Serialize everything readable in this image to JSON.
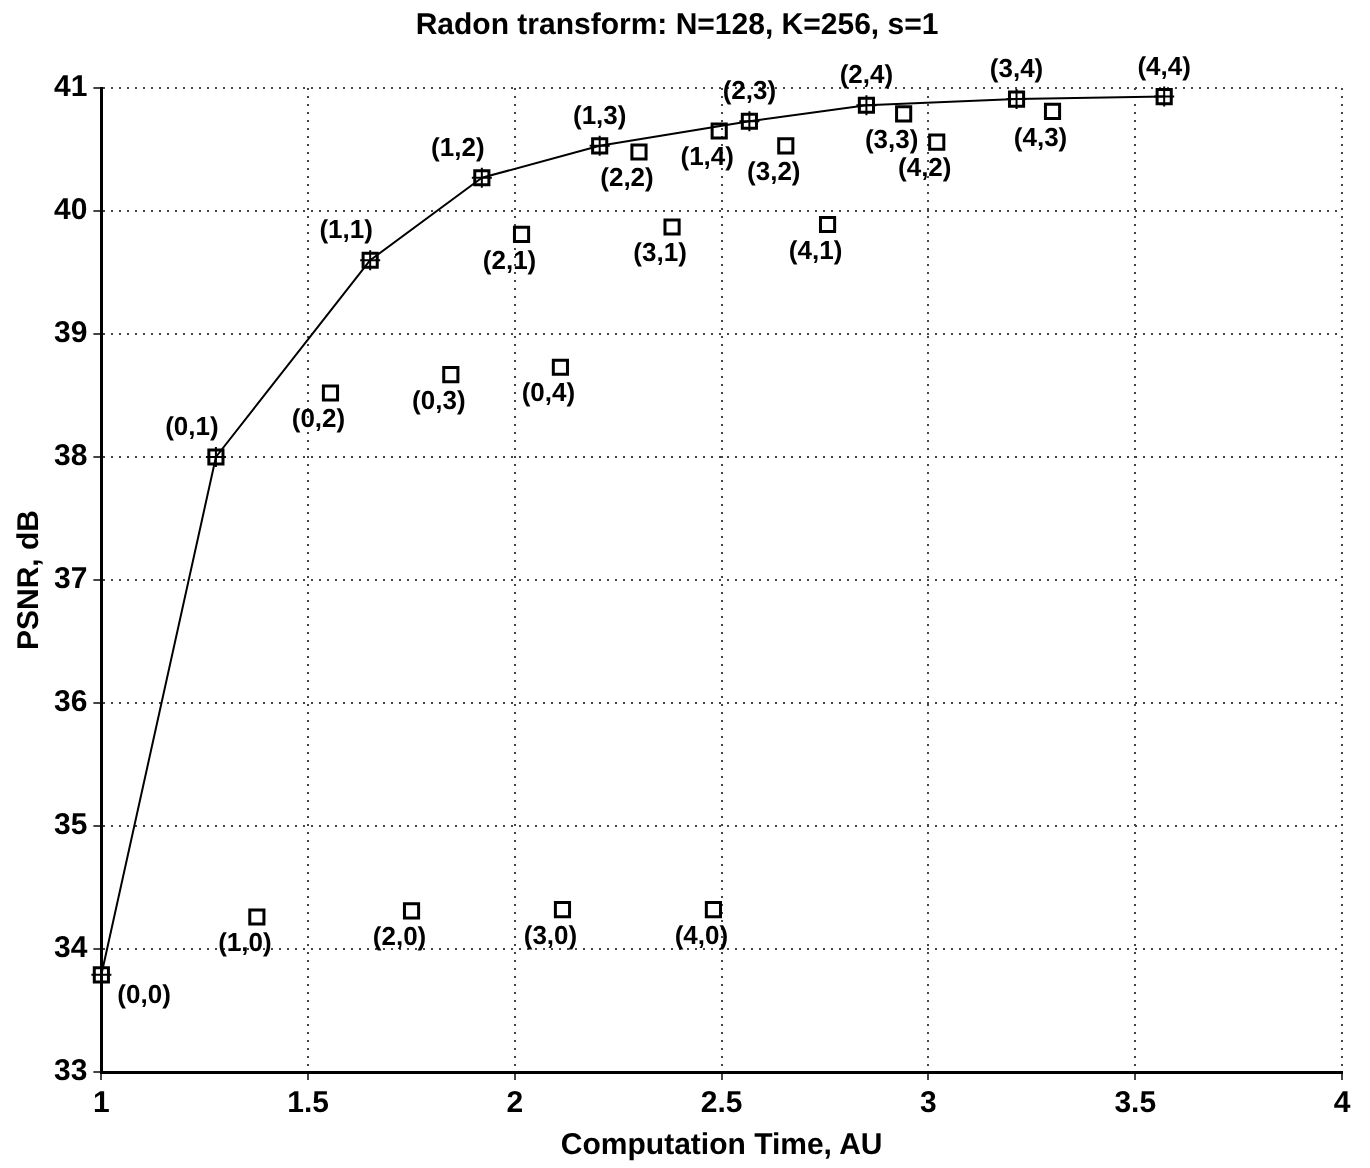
{
  "chart_data": {
    "type": "scatter",
    "title": "Radon transform: N=128, K=256, s=1",
    "xlabel": "Computation Time, AU",
    "ylabel": "PSNR, dB",
    "xlim": [
      1,
      4
    ],
    "xticks": [
      1,
      1.5,
      2,
      2.5,
      3,
      3.5,
      4
    ],
    "ylim": [
      33,
      41
    ],
    "yticks": [
      33,
      34,
      35,
      36,
      37,
      38,
      39,
      40,
      41
    ],
    "grid": true,
    "legend": false,
    "marker": "square",
    "series": [
      {
        "type": "line",
        "color": "#000000",
        "x": [
          1.0,
          1.277,
          1.65,
          1.92,
          2.205,
          2.567,
          2.85,
          3.213,
          3.57
        ],
        "values": [
          33.79,
          38.0,
          39.6,
          40.27,
          40.53,
          40.73,
          40.86,
          40.91,
          40.93
        ]
      },
      {
        "color": "#000000",
        "x": [
          1.554,
          1.845,
          2.11,
          2.016,
          2.38,
          2.756,
          2.3,
          2.655,
          3.02,
          2.94,
          3.3,
          2.494,
          1.376,
          1.75,
          2.115,
          2.48
        ],
        "values": [
          38.52,
          38.67,
          38.73,
          39.81,
          39.87,
          39.89,
          40.48,
          40.53,
          40.56,
          40.79,
          40.81,
          40.65,
          34.26,
          34.31,
          34.32,
          34.32
        ]
      }
    ],
    "annotations": [
      {
        "text": "(0,0)",
        "x": 1.0,
        "y": 33.79
      },
      {
        "text": "(0,1)",
        "x": 1.277,
        "y": 38.0
      },
      {
        "text": "(1,1)",
        "x": 1.65,
        "y": 39.6
      },
      {
        "text": "(1,2)",
        "x": 1.92,
        "y": 40.27
      },
      {
        "text": "(1,3)",
        "x": 2.205,
        "y": 40.53
      },
      {
        "text": "(2,3)",
        "x": 2.567,
        "y": 40.73
      },
      {
        "text": "(2,4)",
        "x": 2.85,
        "y": 40.86
      },
      {
        "text": "(3,4)",
        "x": 3.213,
        "y": 40.91
      },
      {
        "text": "(4,4)",
        "x": 3.57,
        "y": 40.93
      },
      {
        "text": "(0,2)",
        "x": 1.554,
        "y": 38.52
      },
      {
        "text": "(0,3)",
        "x": 1.845,
        "y": 38.67
      },
      {
        "text": "(0,4)",
        "x": 2.11,
        "y": 38.73
      },
      {
        "text": "(2,1)",
        "x": 2.016,
        "y": 39.81
      },
      {
        "text": "(3,1)",
        "x": 2.38,
        "y": 39.87
      },
      {
        "text": "(4,1)",
        "x": 2.756,
        "y": 39.89
      },
      {
        "text": "(2,2)",
        "x": 2.3,
        "y": 40.48
      },
      {
        "text": "(3,2)",
        "x": 2.655,
        "y": 40.53
      },
      {
        "text": "(4,2)",
        "x": 3.02,
        "y": 40.56
      },
      {
        "text": "(3,3)",
        "x": 2.94,
        "y": 40.79
      },
      {
        "text": "(4,3)",
        "x": 3.3,
        "y": 40.81
      },
      {
        "text": "(1,4)",
        "x": 2.494,
        "y": 40.65
      },
      {
        "text": "(1,0)",
        "x": 1.376,
        "y": 34.26
      },
      {
        "text": "(2,0)",
        "x": 1.75,
        "y": 34.31
      },
      {
        "text": "(3,0)",
        "x": 2.115,
        "y": 34.32
      },
      {
        "text": "(4,0)",
        "x": 2.48,
        "y": 34.32
      }
    ]
  }
}
